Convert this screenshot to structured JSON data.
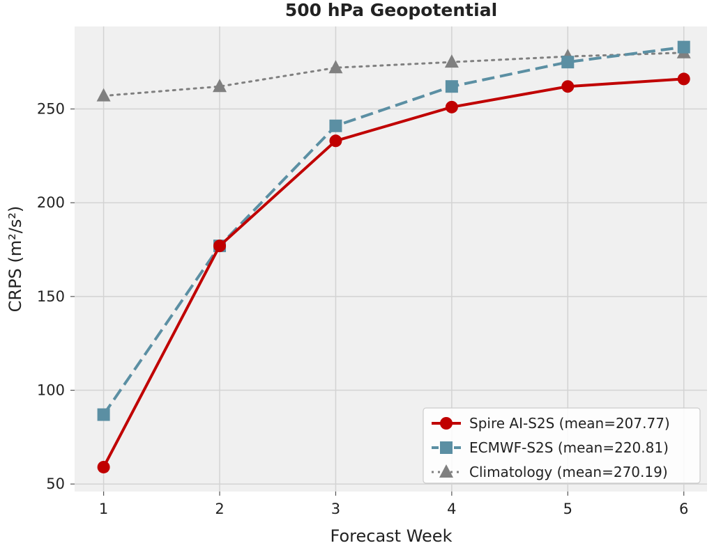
{
  "chart_data": {
    "type": "line",
    "title": "500 hPa Geopotential",
    "xlabel": "Forecast Week",
    "ylabel": "CRPS (m²/s²)",
    "x": [
      1,
      2,
      3,
      4,
      5,
      6
    ],
    "xticks": [
      1,
      2,
      3,
      4,
      5,
      6
    ],
    "yticks": [
      50,
      100,
      150,
      200,
      250
    ],
    "xlim": [
      0.75,
      6.2
    ],
    "ylim": [
      46,
      294
    ],
    "grid": true,
    "legend_position": "bottom-right",
    "series": [
      {
        "name": "Spire AI-S2S (mean=207.77)",
        "values": [
          59,
          177,
          233,
          251,
          262,
          266
        ],
        "color": "#c00000",
        "linestyle": "solid",
        "marker": "circle"
      },
      {
        "name": "ECMWF-S2S (mean=220.81)",
        "values": [
          87,
          177,
          241,
          262,
          275,
          283
        ],
        "color": "#5b8fa3",
        "linestyle": "dashed",
        "marker": "square"
      },
      {
        "name": "Climatology (mean=270.19)",
        "values": [
          257,
          262,
          272,
          275,
          278,
          280
        ],
        "color": "#808080",
        "linestyle": "dotted",
        "marker": "triangle"
      }
    ]
  }
}
